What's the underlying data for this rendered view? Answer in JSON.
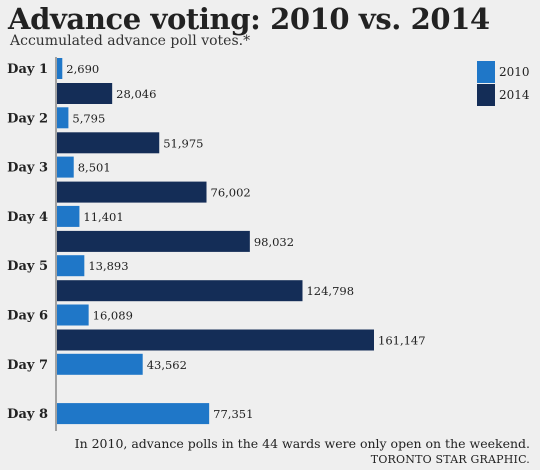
{
  "chart_data": {
    "type": "bar",
    "title": "Advance voting: 2010 vs. 2014",
    "subtitle": "Accumulated advance poll votes.*",
    "categories": [
      "Day 1",
      "Day 2",
      "Day 3",
      "Day 4",
      "Day 5",
      "Day 6",
      "Day 7",
      "Day 8"
    ],
    "series": [
      {
        "name": "2010",
        "color": "#1f77c8",
        "values": [
          2690,
          5795,
          8501,
          11401,
          13893,
          16089,
          43562,
          77351
        ],
        "labels": [
          "2,690",
          "5,795",
          "8,501",
          "11,401",
          "13,893",
          "16,089",
          "43,562",
          "77,351"
        ]
      },
      {
        "name": "2014",
        "color": "#142d57",
        "values": [
          28046,
          51975,
          76002,
          98032,
          124798,
          161147,
          null,
          null
        ],
        "labels": [
          "28,046",
          "51,975",
          "76,002",
          "98,032",
          "124,798",
          "161,147",
          "",
          ""
        ]
      }
    ],
    "orientation": "horizontal",
    "grid": false,
    "legend_position": "top-right",
    "xlim": [
      0,
      161147
    ],
    "note": "In 2010, advance polls in the 44 wards were only open on the weekend.",
    "source": "TORONTO STAR GRAPHIC."
  }
}
